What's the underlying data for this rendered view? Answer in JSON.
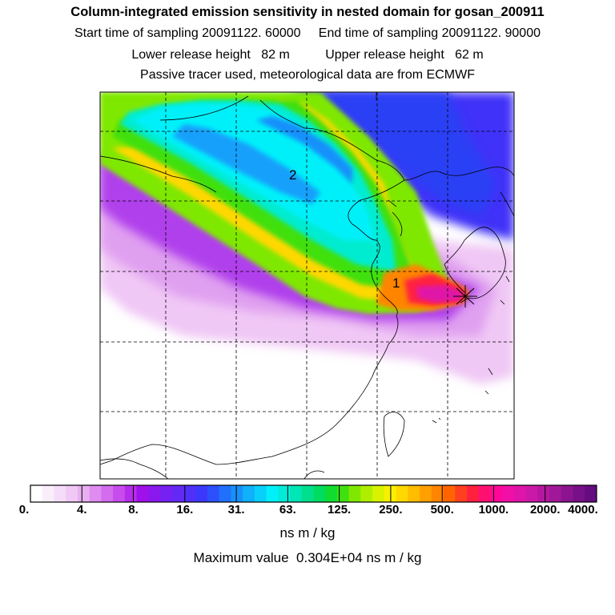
{
  "header": {
    "title": "Column-integrated emission sensitivity in nested domain for gosan_200911",
    "line2": "Start time of sampling 20091122. 60000     End time of sampling 20091122. 90000",
    "line3": "Lower release height   82 m          Upper release height   62 m",
    "line4": "Passive tracer used, meteorological data are from ECMWF"
  },
  "map": {
    "labels": [
      {
        "id": "label-1",
        "text": "1"
      },
      {
        "id": "label-2",
        "text": "2"
      }
    ],
    "receptor": "Gosan",
    "gridlines": "dashed"
  },
  "colorbar": {
    "ticks": [
      "0.",
      "4.",
      "8.",
      "16.",
      "31.",
      "63.",
      "125.",
      "250.",
      "500.",
      "1000.",
      "2000.",
      "4000."
    ],
    "colors": [
      "#ffffff",
      "#fbeefb",
      "#f5dcf8",
      "#f0c8f5",
      "#e8b0f0",
      "#de8cf0",
      "#d46cee",
      "#c84ced",
      "#b52ceb",
      "#a010e8",
      "#8a18ee",
      "#7620f2",
      "#6428f5",
      "#5030f8",
      "#3c38fb",
      "#2c50fb",
      "#2070fb",
      "#1890fb",
      "#10b0fb",
      "#08d0fb",
      "#00f0fa",
      "#00ecd8",
      "#00e6b6",
      "#00e08c",
      "#00dc60",
      "#10dc30",
      "#40e010",
      "#80e800",
      "#b0ee00",
      "#d8f200",
      "#f8f000",
      "#ffd800",
      "#ffbc00",
      "#ffa000",
      "#ff8400",
      "#ff6400",
      "#ff4020",
      "#ff2040",
      "#ff1070",
      "#ff0898",
      "#f010a8",
      "#e014a8",
      "#cc18a8",
      "#b418a0",
      "#a01898",
      "#8c1490",
      "#781088",
      "#640c80"
    ],
    "units": "ns m / kg"
  },
  "max_value": "Maximum value  0.304E+04 ns m / kg"
}
